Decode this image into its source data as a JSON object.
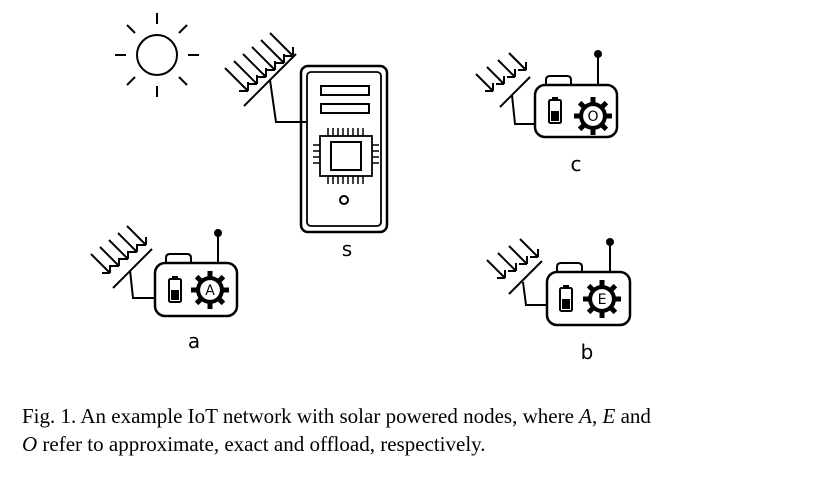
{
  "nodes": {
    "server": {
      "label": "s"
    },
    "node_a": {
      "label": "a",
      "mode": "A"
    },
    "node_b": {
      "label": "b",
      "mode": "E"
    },
    "node_c": {
      "label": "c",
      "mode": "O"
    }
  },
  "caption": {
    "prefix": "Fig. 1.  An example IoT network with solar powered nodes, where ",
    "mode_a": "A",
    "sep1": ", ",
    "mode_e": "E",
    "and": " and",
    "mode_o": "O",
    "suffix": " refer to approximate, exact and offload, respectively."
  },
  "icons": [
    "sun-icon",
    "solar-panel-icon",
    "server-icon",
    "chip-icon",
    "iot-device-icon",
    "battery-icon",
    "gear-icon",
    "antenna-icon"
  ]
}
